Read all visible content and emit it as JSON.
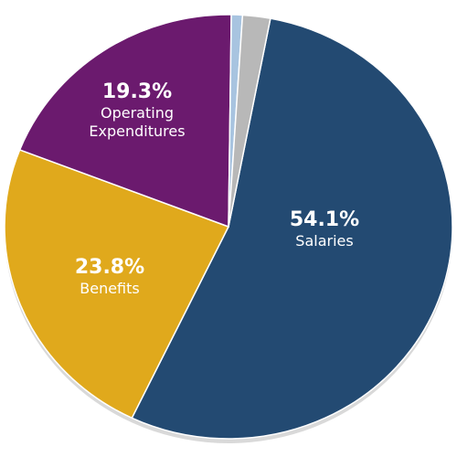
{
  "chart_data": {
    "type": "pie",
    "categories": [
      "Salaries",
      "Benefits",
      "Operating Expenditures",
      null,
      null
    ],
    "values": [
      54.1,
      23.8,
      19.3,
      0.8,
      2.0
    ],
    "value_labels": [
      "54.1%",
      "23.8%",
      "19.3%",
      null,
      null
    ],
    "colors": [
      "#234a72",
      "#e0a91c",
      "#6b1a6e",
      "#a8c4e0",
      "#b8b8b8"
    ]
  }
}
